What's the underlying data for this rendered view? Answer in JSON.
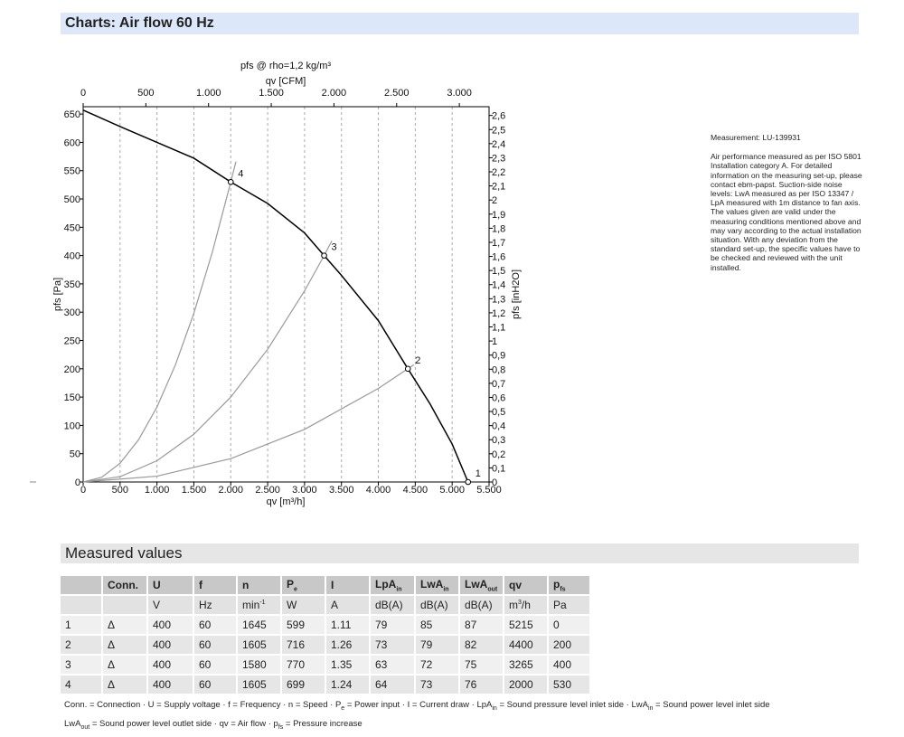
{
  "header": {
    "title": "Charts: Air flow 60 Hz"
  },
  "chart_data": {
    "type": "line",
    "title": "pfs @ rho=1,2 kg/m³",
    "x_label": "qv [m³/h]",
    "x2_label": "qv [CFM]",
    "y_label": "pfs [Pa]",
    "y2_label": "pfs [inH2O]",
    "xlim": [
      0,
      5500
    ],
    "xticks": [
      0,
      500,
      {
        "value": 1000,
        "label": "1.000"
      },
      {
        "value": 1500,
        "label": "1.500"
      },
      {
        "value": 2000,
        "label": "2.000"
      },
      {
        "value": 2500,
        "label": "2.500"
      },
      {
        "value": 3000,
        "label": "3.000"
      },
      {
        "value": 3500,
        "label": "3.500"
      },
      {
        "value": 4000,
        "label": "4.000"
      },
      {
        "value": 4500,
        "label": "4.500"
      },
      {
        "value": 5000,
        "label": "5.000"
      },
      {
        "value": 5500,
        "label": "5.500"
      }
    ],
    "x2lim": [
      0,
      3237
    ],
    "x2ticks": [
      0,
      500,
      {
        "value": 1000,
        "label": "1.000"
      },
      {
        "value": 1500,
        "label": "1.500"
      },
      {
        "value": 2000,
        "label": "2.000"
      },
      {
        "value": 2500,
        "label": "2.500"
      },
      {
        "value": 3000,
        "label": "3.000"
      }
    ],
    "ylim": [
      0,
      663
    ],
    "yticks": [
      0,
      50,
      100,
      150,
      200,
      250,
      300,
      350,
      400,
      450,
      500,
      550,
      600,
      650
    ],
    "y2lim": [
      0,
      2.662
    ],
    "y2ticks": [
      0,
      {
        "value": 0.1,
        "label": "0,1"
      },
      {
        "value": 0.2,
        "label": "0,2"
      },
      {
        "value": 0.3,
        "label": "0,3"
      },
      {
        "value": 0.4,
        "label": "0,4"
      },
      {
        "value": 0.5,
        "label": "0,5"
      },
      {
        "value": 0.6,
        "label": "0,6"
      },
      {
        "value": 0.7,
        "label": "0,7"
      },
      {
        "value": 0.8,
        "label": "0,8"
      },
      {
        "value": 0.9,
        "label": "0,9"
      },
      1,
      {
        "value": 1.1,
        "label": "1,1"
      },
      {
        "value": 1.2,
        "label": "1,2"
      },
      {
        "value": 1.3,
        "label": "1,3"
      },
      {
        "value": 1.4,
        "label": "1,4"
      },
      {
        "value": 1.5,
        "label": "1,5"
      },
      {
        "value": 1.6,
        "label": "1,6"
      },
      {
        "value": 1.7,
        "label": "1,7"
      },
      {
        "value": 1.8,
        "label": "1,8"
      },
      {
        "value": 1.9,
        "label": "1,9"
      },
      2,
      {
        "value": 2.1,
        "label": "2,1"
      },
      {
        "value": 2.2,
        "label": "2,2"
      },
      {
        "value": 2.3,
        "label": "2,3"
      },
      {
        "value": 2.4,
        "label": "2,4"
      },
      {
        "value": 2.5,
        "label": "2,5"
      },
      {
        "value": 2.6,
        "label": "2,6"
      }
    ],
    "grid": "x",
    "series": [
      {
        "color": "#000000",
        "x": [
          0,
          500,
          1000,
          1500,
          2000,
          2500,
          3000,
          3265,
          3500,
          4000,
          4400,
          4700,
          5000,
          5215
        ],
        "values": [
          657,
          628,
          600,
          572,
          530,
          492,
          440,
          400,
          365,
          285,
          200,
          138,
          67,
          0
        ]
      },
      {
        "color": "#999999",
        "x": [
          0,
          250,
          500,
          750,
          1000,
          1250,
          1500,
          1750,
          2000,
          2070
        ],
        "values": [
          0,
          8.3,
          33.1,
          74.5,
          132.5,
          207,
          298,
          406,
          530,
          566
        ]
      },
      {
        "color": "#999999",
        "x": [
          0,
          500,
          1000,
          1500,
          2000,
          2500,
          3000,
          3265,
          3370
        ],
        "values": [
          0,
          9.4,
          37.5,
          84.4,
          150,
          234.5,
          337.7,
          400,
          426
        ]
      },
      {
        "color": "#999999",
        "x": [
          0,
          1000,
          2000,
          3000,
          4000,
          4400,
          4480
        ],
        "values": [
          0,
          10.3,
          41.3,
          93,
          165.3,
          200,
          207
        ]
      }
    ],
    "operating_points": [
      {
        "label": "1",
        "x": 5215,
        "y": 0
      },
      {
        "label": "2",
        "x": 4400,
        "y": 200
      },
      {
        "label": "3",
        "x": 3265,
        "y": 400
      },
      {
        "label": "4",
        "x": 2000,
        "y": 530
      }
    ]
  },
  "notes": {
    "measurement": "Measurement: LU-139931",
    "lines": [
      "Air performance measured as per ISO 5801",
      "Installation category A. For detailed",
      "information on the measuring set-up, please",
      "contact ebm-papst. Suction-side noise",
      "levels: LwA measured as per ISO 13347 /",
      "LpA measured with 1m distance to fan axis.",
      "The values given are valid under the",
      "measuring conditions mentioned above and",
      "may vary according to the actual installation",
      "situation. With any deviation from the",
      "standard set-up, the specific values have to",
      "be checked and reviewed with the unit",
      "installed."
    ]
  },
  "table": {
    "title": "Measured values",
    "header": [
      null,
      "Conn.",
      "U",
      "f",
      "n",
      {
        "text": "P",
        "sub": "e"
      },
      "I",
      {
        "text": "LpA",
        "sub": "in"
      },
      {
        "text": "LwA",
        "sub": "in"
      },
      {
        "text": "LwA",
        "sub": "out"
      },
      "qv",
      {
        "text": "p",
        "sub": "fs"
      }
    ],
    "units": [
      null,
      null,
      "V",
      "Hz",
      {
        "text": "min",
        "sup": "-1"
      },
      "W",
      "A",
      "dB(A)",
      "dB(A)",
      "dB(A)",
      {
        "text": "m",
        "sup": "3",
        "after": "/h"
      },
      "Pa"
    ],
    "rows": [
      [
        1,
        "Δ",
        400,
        60,
        1645,
        599,
        1.11,
        79,
        85,
        87,
        5215,
        0
      ],
      [
        2,
        "Δ",
        400,
        60,
        1605,
        716,
        1.26,
        73,
        79,
        82,
        4400,
        200
      ],
      [
        3,
        "Δ",
        400,
        60,
        1580,
        770,
        1.35,
        63,
        72,
        75,
        3265,
        400
      ],
      [
        4,
        "Δ",
        400,
        60,
        1605,
        699,
        1.24,
        64,
        73,
        76,
        2000,
        530
      ]
    ]
  },
  "footnote": [
    [
      {
        "text": "Conn. = Connection · U = Supply voltage · f = Frequency · n = Speed · P"
      },
      {
        "sub": "e"
      },
      {
        "text": " = Power input · I = Current draw · LpA"
      },
      {
        "sub": "in"
      },
      {
        "text": " = Sound pressure level inlet side · LwA"
      },
      {
        "sub": "in"
      },
      {
        "text": " = Sound power level inlet side"
      }
    ],
    [
      {
        "text": "LwA"
      },
      {
        "sub": "out"
      },
      {
        "text": " = Sound power level outlet side · qv = Air flow · p"
      },
      {
        "sub": "fs"
      },
      {
        "text": " = Pressure increase"
      }
    ]
  ]
}
